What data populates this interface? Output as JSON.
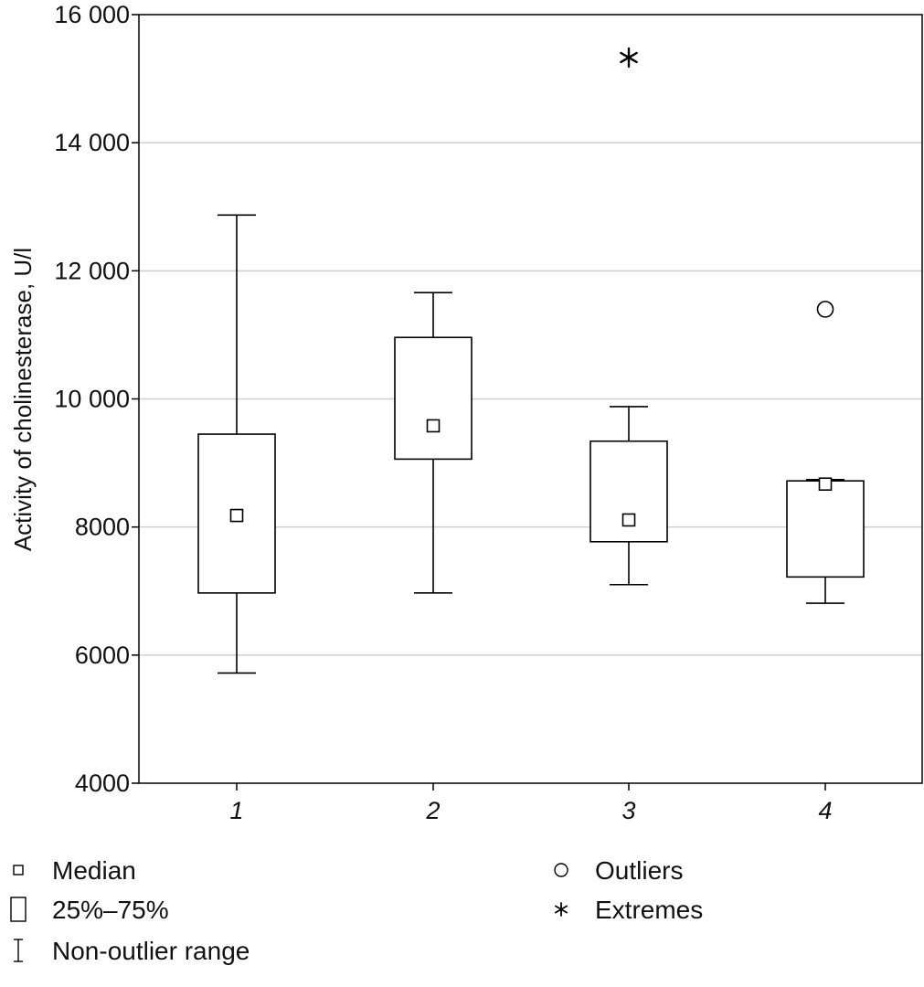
{
  "chart_data": {
    "type": "boxplot",
    "title": "",
    "xlabel": "",
    "ylabel": "Activity of cholinesterase, U/l",
    "ylim": [
      4000,
      16000
    ],
    "yticks": [
      4000,
      6000,
      8000,
      10000,
      12000,
      14000,
      16000
    ],
    "ytick_labels": [
      "4000",
      "6000",
      "8000",
      "10 000",
      "12 000",
      "14 000",
      "16 000"
    ],
    "grid": true,
    "categories": [
      "1",
      "2",
      "3",
      "4"
    ],
    "boxes": [
      {
        "category": "1",
        "median": 8180,
        "q1": 6970,
        "q3": 9450,
        "whisker_low": 5720,
        "whisker_high": 12870,
        "outliers": [],
        "extremes": []
      },
      {
        "category": "2",
        "median": 9580,
        "q1": 9060,
        "q3": 10960,
        "whisker_low": 6970,
        "whisker_high": 11660,
        "outliers": [],
        "extremes": []
      },
      {
        "category": "3",
        "median": 8110,
        "q1": 7770,
        "q3": 9340,
        "whisker_low": 7100,
        "whisker_high": 9880,
        "outliers": [],
        "extremes": [
          15330
        ]
      },
      {
        "category": "4",
        "median": 8670,
        "q1": 7220,
        "q3": 8720,
        "whisker_low": 6810,
        "whisker_high": 8740,
        "outliers": [
          11400
        ],
        "extremes": []
      }
    ],
    "legend": {
      "placement": "bottom",
      "items": [
        {
          "symbol": "median-square",
          "label": "Median"
        },
        {
          "symbol": "box",
          "label": "25%–75%"
        },
        {
          "symbol": "whisker",
          "label": "Non-outlier range"
        },
        {
          "symbol": "outlier-circle",
          "label": "Outliers"
        },
        {
          "symbol": "extreme-asterisk",
          "label": "Extremes"
        }
      ]
    }
  }
}
